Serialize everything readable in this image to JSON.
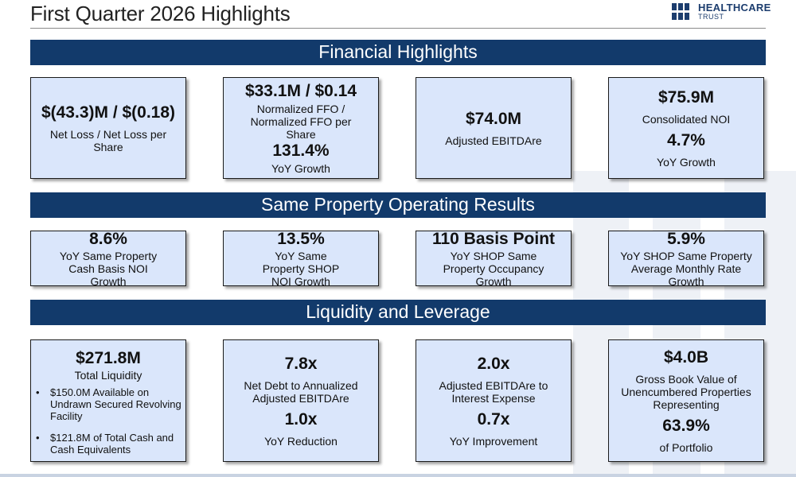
{
  "page_title": "First Quarter 2026 Highlights",
  "logo": {
    "line1": "HEALTHCARE",
    "line2": "TRUST"
  },
  "colors": {
    "navy": "#123a6b",
    "card_fill": "#dae6fb"
  },
  "sections": [
    {
      "title": "Financial Highlights",
      "cards": [
        {
          "value": "$(43.3)M / $(0.18)",
          "label": "Net Loss / Net Loss per Share"
        },
        {
          "value": "$33.1M / $0.14",
          "label": "Normalized FFO / Normalized FFO per Share",
          "value2": "131.4%",
          "label2": "YoY Growth"
        },
        {
          "value": "$74.0M",
          "label": "Adjusted EBITDAre"
        },
        {
          "value": "$75.9M",
          "label": "Consolidated NOI",
          "value2": "4.7%",
          "label2": "YoY Growth"
        }
      ]
    },
    {
      "title": "Same Property Operating Results",
      "cards": [
        {
          "value": "8.6%",
          "label": "YoY Same Property Cash Basis NOI Growth"
        },
        {
          "value": "13.5%",
          "label": "YoY Same Property SHOP NOI Growth"
        },
        {
          "value": "110 Basis Point",
          "label": "YoY SHOP Same Property Occupancy Growth"
        },
        {
          "value": "5.9%",
          "label": "YoY SHOP Same Property Average Monthly Rate Growth"
        }
      ]
    },
    {
      "title": "Liquidity and Leverage",
      "cards": [
        {
          "value": "$271.8M",
          "label": "Total Liquidity",
          "bullets": [
            "$150.0M Available on Undrawn Secured Revolving Facility",
            "$121.8M of Total Cash and Cash Equivalents"
          ]
        },
        {
          "value": "7.8x",
          "label": "Net Debt to Annualized Adjusted EBITDAre",
          "value2": "1.0x",
          "label2": "YoY Reduction"
        },
        {
          "value": "2.0x",
          "label": "Adjusted EBITDAre to Interest Expense",
          "value2": "0.7x",
          "label2": "YoY Improvement"
        },
        {
          "value": "$4.0B",
          "label": "Gross Book Value of Unencumbered Properties Representing",
          "value2": "63.9%",
          "label2": "of Portfolio"
        }
      ]
    }
  ]
}
